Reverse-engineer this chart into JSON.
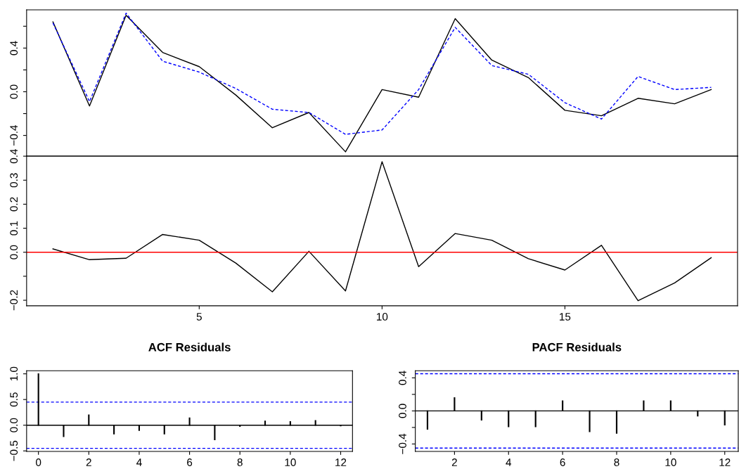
{
  "chart_data": [
    {
      "type": "line",
      "x": [
        1,
        2,
        3,
        4,
        5,
        6,
        7,
        8,
        9,
        10,
        11,
        12,
        13,
        14,
        15,
        16,
        17,
        18,
        19
      ],
      "series": [
        {
          "color": "#000000",
          "line_style": "solid",
          "values": [
            0.64,
            -0.13,
            0.7,
            0.36,
            0.23,
            -0.03,
            -0.33,
            -0.19,
            -0.55,
            0.02,
            -0.05,
            0.67,
            0.29,
            0.13,
            -0.17,
            -0.22,
            -0.06,
            -0.11,
            0.02
          ]
        },
        {
          "color": "#0000ff",
          "line_style": "dashed",
          "values": [
            0.63,
            -0.09,
            0.72,
            0.28,
            0.18,
            0.03,
            -0.16,
            -0.19,
            -0.39,
            -0.35,
            0.02,
            0.59,
            0.24,
            0.16,
            -0.1,
            -0.25,
            0.14,
            0.02,
            0.04
          ]
        }
      ],
      "xlim": [
        0.28,
        19.72
      ],
      "ylim": [
        -0.59,
        0.75
      ],
      "yticks": [
        {
          "value": -0.4,
          "label": "−0.4"
        },
        {
          "value": -0.2,
          "label": null
        },
        {
          "value": 0.0,
          "label": "0.0"
        },
        {
          "value": 0.2,
          "label": null
        },
        {
          "value": 0.4,
          "label": "0.4"
        },
        {
          "value": 0.6,
          "label": null
        }
      ],
      "tick_labels": "y",
      "grid": false
    },
    {
      "type": "line",
      "x": [
        1,
        2,
        3,
        4,
        5,
        6,
        7,
        8,
        9,
        10,
        11,
        12,
        13,
        14,
        15,
        16,
        17,
        18,
        19
      ],
      "series": [
        {
          "color": "#000000",
          "line_style": "solid",
          "values": [
            0.014,
            -0.031,
            -0.025,
            0.074,
            0.05,
            -0.045,
            -0.165,
            0.004,
            -0.161,
            0.377,
            -0.06,
            0.078,
            0.05,
            -0.027,
            -0.074,
            0.029,
            -0.202,
            -0.128,
            -0.023
          ]
        }
      ],
      "ref_lines": [
        {
          "axis": "y",
          "value": 0,
          "label": null,
          "color": "#ff0000",
          "line_style": "solid"
        }
      ],
      "xlim": [
        0.28,
        19.72
      ],
      "xticks": [
        5,
        10,
        15
      ],
      "ylim": [
        -0.223,
        0.4
      ],
      "yticks": [
        {
          "value": -0.2,
          "label": "−0.2"
        },
        {
          "value": -0.1,
          "label": null
        },
        {
          "value": 0.0,
          "label": "0.0"
        },
        {
          "value": 0.1,
          "label": "0.1"
        },
        {
          "value": 0.2,
          "label": "0.2"
        },
        {
          "value": 0.3,
          "label": "0.3"
        },
        {
          "value": 0.4,
          "label": "0.4"
        }
      ],
      "grid": false
    },
    {
      "type": "bar",
      "title": "ACF Residuals",
      "x": [
        0,
        1,
        2,
        3,
        4,
        5,
        6,
        7,
        8,
        9,
        10,
        11,
        12
      ],
      "values": [
        1.0,
        -0.22,
        0.2,
        -0.17,
        -0.1,
        -0.17,
        0.14,
        -0.28,
        -0.02,
        0.08,
        0.07,
        0.09,
        -0.01
      ],
      "color": "#000000",
      "ref_lines": [
        {
          "axis": "y",
          "value": 0.45,
          "label": null,
          "color": "#0000ff",
          "line_style": "dashed"
        },
        {
          "axis": "y",
          "value": -0.45,
          "label": null,
          "color": "#0000ff",
          "line_style": "dashed"
        },
        {
          "axis": "y",
          "value": 0,
          "label": null,
          "color": "#000000",
          "line_style": "solid"
        }
      ],
      "xlim": [
        -0.47,
        12.47
      ],
      "xticks": [
        0,
        2,
        4,
        6,
        8,
        10,
        12
      ],
      "ylim": [
        -0.51,
        1.06
      ],
      "yticks": [
        {
          "value": -0.5,
          "label": "−0.5"
        },
        {
          "value": 0,
          "label": "0.0"
        },
        0.5,
        {
          "value": 1,
          "label": "1.0"
        }
      ],
      "grid": false
    },
    {
      "type": "bar",
      "title": "PACF Residuals",
      "x": [
        1,
        2,
        3,
        4,
        5,
        6,
        7,
        8,
        9,
        10,
        11,
        12
      ],
      "values": [
        -0.22,
        0.16,
        -0.11,
        -0.19,
        -0.19,
        0.12,
        -0.25,
        -0.27,
        0.12,
        0.12,
        -0.06,
        -0.17
      ],
      "color": "#000000",
      "ref_lines": [
        {
          "axis": "y",
          "value": 0.45,
          "label": null,
          "color": "#0000ff",
          "line_style": "dashed"
        },
        {
          "axis": "y",
          "value": -0.45,
          "label": null,
          "color": "#0000ff",
          "line_style": "dashed"
        },
        {
          "axis": "y",
          "value": 0,
          "label": null,
          "color": "#000000",
          "line_style": "solid"
        }
      ],
      "xlim": [
        0.55,
        12.5
      ],
      "xticks": [
        2,
        4,
        6,
        8,
        10,
        12
      ],
      "ylim": [
        -0.49,
        0.486
      ],
      "yticks": [
        {
          "value": -0.4,
          "label": "−0.4"
        },
        {
          "value": -0.2,
          "label": null
        },
        {
          "value": 0,
          "label": "0.0"
        },
        {
          "value": 0.2,
          "label": null
        },
        0.4
      ],
      "grid": false
    }
  ]
}
